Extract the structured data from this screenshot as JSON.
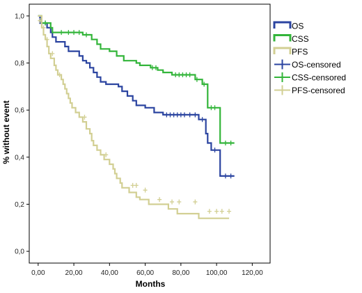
{
  "chart_data": {
    "type": "line",
    "subtype": "kaplan-meier step",
    "title": "",
    "xlabel": "Months",
    "ylabel": "% without event",
    "xlim": [
      -5,
      130
    ],
    "ylim": [
      -0.05,
      1.05
    ],
    "x_ticks": [
      "0,00",
      "20,00",
      "40,00",
      "60,00",
      "80,00",
      "100,00",
      "120,00"
    ],
    "x_tick_values": [
      0,
      20,
      40,
      60,
      80,
      100,
      120
    ],
    "y_ticks": [
      "0,0",
      "0,2",
      "0,4",
      "0,6",
      "0,8",
      "1,0"
    ],
    "y_tick_values": [
      0,
      0.2,
      0.4,
      0.6,
      0.8,
      1.0
    ],
    "grid": false,
    "legend_position": "right",
    "series": [
      {
        "name": "OS",
        "color": "#2b44a0",
        "steps": [
          [
            0,
            1.0
          ],
          [
            1,
            0.97
          ],
          [
            5,
            0.95
          ],
          [
            7,
            0.93
          ],
          [
            8,
            0.91
          ],
          [
            10,
            0.89
          ],
          [
            15,
            0.87
          ],
          [
            17,
            0.85
          ],
          [
            23,
            0.83
          ],
          [
            25,
            0.81
          ],
          [
            27,
            0.8
          ],
          [
            29,
            0.78
          ],
          [
            31,
            0.76
          ],
          [
            33,
            0.74
          ],
          [
            35,
            0.72
          ],
          [
            38,
            0.71
          ],
          [
            45,
            0.7
          ],
          [
            47,
            0.68
          ],
          [
            50,
            0.66
          ],
          [
            53,
            0.64
          ],
          [
            55,
            0.62
          ],
          [
            60,
            0.61
          ],
          [
            65,
            0.59
          ],
          [
            70,
            0.58
          ],
          [
            90,
            0.56
          ],
          [
            94,
            0.5
          ],
          [
            95,
            0.46
          ],
          [
            97,
            0.43
          ],
          [
            102,
            0.32
          ],
          [
            110,
            0.32
          ]
        ],
        "censored": [
          [
            4,
            0.97
          ],
          [
            72,
            0.58
          ],
          [
            74,
            0.58
          ],
          [
            76,
            0.58
          ],
          [
            78,
            0.58
          ],
          [
            80,
            0.58
          ],
          [
            82,
            0.58
          ],
          [
            85,
            0.58
          ],
          [
            88,
            0.58
          ],
          [
            92,
            0.56
          ],
          [
            99,
            0.43
          ],
          [
            105,
            0.32
          ],
          [
            108,
            0.32
          ]
        ]
      },
      {
        "name": "CSS",
        "color": "#33b53a",
        "steps": [
          [
            0,
            1.0
          ],
          [
            2,
            0.97
          ],
          [
            7,
            0.95
          ],
          [
            8,
            0.93
          ],
          [
            25,
            0.92
          ],
          [
            30,
            0.9
          ],
          [
            33,
            0.88
          ],
          [
            35,
            0.86
          ],
          [
            40,
            0.85
          ],
          [
            44,
            0.83
          ],
          [
            48,
            0.81
          ],
          [
            55,
            0.8
          ],
          [
            57,
            0.79
          ],
          [
            63,
            0.78
          ],
          [
            67,
            0.77
          ],
          [
            70,
            0.76
          ],
          [
            75,
            0.75
          ],
          [
            88,
            0.73
          ],
          [
            92,
            0.71
          ],
          [
            95,
            0.61
          ],
          [
            102,
            0.46
          ],
          [
            110,
            0.46
          ]
        ],
        "censored": [
          [
            4,
            0.97
          ],
          [
            13,
            0.93
          ],
          [
            17,
            0.93
          ],
          [
            20,
            0.93
          ],
          [
            23,
            0.93
          ],
          [
            27,
            0.92
          ],
          [
            64,
            0.78
          ],
          [
            66,
            0.78
          ],
          [
            77,
            0.75
          ],
          [
            79,
            0.75
          ],
          [
            81,
            0.75
          ],
          [
            83,
            0.75
          ],
          [
            85,
            0.75
          ],
          [
            89,
            0.73
          ],
          [
            93,
            0.71
          ],
          [
            97,
            0.61
          ],
          [
            99,
            0.61
          ],
          [
            105,
            0.46
          ],
          [
            108,
            0.46
          ]
        ]
      },
      {
        "name": "PFS",
        "color": "#d2cf93",
        "steps": [
          [
            0,
            1.0
          ],
          [
            2,
            0.95
          ],
          [
            3,
            0.92
          ],
          [
            4,
            0.9
          ],
          [
            5,
            0.87
          ],
          [
            6,
            0.84
          ],
          [
            7,
            0.82
          ],
          [
            9,
            0.79
          ],
          [
            10,
            0.77
          ],
          [
            11,
            0.75
          ],
          [
            13,
            0.73
          ],
          [
            14,
            0.71
          ],
          [
            15,
            0.69
          ],
          [
            16,
            0.67
          ],
          [
            17,
            0.65
          ],
          [
            18,
            0.63
          ],
          [
            19,
            0.61
          ],
          [
            21,
            0.59
          ],
          [
            23,
            0.57
          ],
          [
            25,
            0.55
          ],
          [
            27,
            0.52
          ],
          [
            29,
            0.5
          ],
          [
            30,
            0.47
          ],
          [
            31,
            0.45
          ],
          [
            33,
            0.43
          ],
          [
            35,
            0.41
          ],
          [
            37,
            0.39
          ],
          [
            40,
            0.37
          ],
          [
            42,
            0.35
          ],
          [
            43,
            0.33
          ],
          [
            44,
            0.31
          ],
          [
            46,
            0.29
          ],
          [
            47,
            0.27
          ],
          [
            51,
            0.25
          ],
          [
            55,
            0.23
          ],
          [
            57,
            0.22
          ],
          [
            62,
            0.2
          ],
          [
            66,
            0.2
          ],
          [
            73,
            0.18
          ],
          [
            78,
            0.16
          ],
          [
            90,
            0.14
          ],
          [
            100,
            0.14
          ],
          [
            107,
            0.14
          ]
        ],
        "censored": [
          [
            1,
            0.98
          ],
          [
            3,
            0.95
          ],
          [
            5,
            0.9
          ],
          [
            8,
            0.84
          ],
          [
            12,
            0.75
          ],
          [
            26,
            0.57
          ],
          [
            38,
            0.41
          ],
          [
            53,
            0.28
          ],
          [
            55,
            0.28
          ],
          [
            60,
            0.26
          ],
          [
            68,
            0.22
          ],
          [
            75,
            0.21
          ],
          [
            79,
            0.21
          ],
          [
            88,
            0.21
          ],
          [
            96,
            0.17
          ],
          [
            100,
            0.17
          ],
          [
            103,
            0.17
          ],
          [
            107,
            0.17
          ]
        ]
      }
    ],
    "legend": [
      {
        "label": "OS",
        "kind": "box",
        "series": 0
      },
      {
        "label": "CSS",
        "kind": "box",
        "series": 1
      },
      {
        "label": "PFS",
        "kind": "box",
        "series": 2
      },
      {
        "label": "OS-censored",
        "kind": "plus",
        "series": 0
      },
      {
        "label": "CSS-censored",
        "kind": "plus",
        "series": 1
      },
      {
        "label": "PFS-censored",
        "kind": "plus",
        "series": 2
      }
    ]
  }
}
